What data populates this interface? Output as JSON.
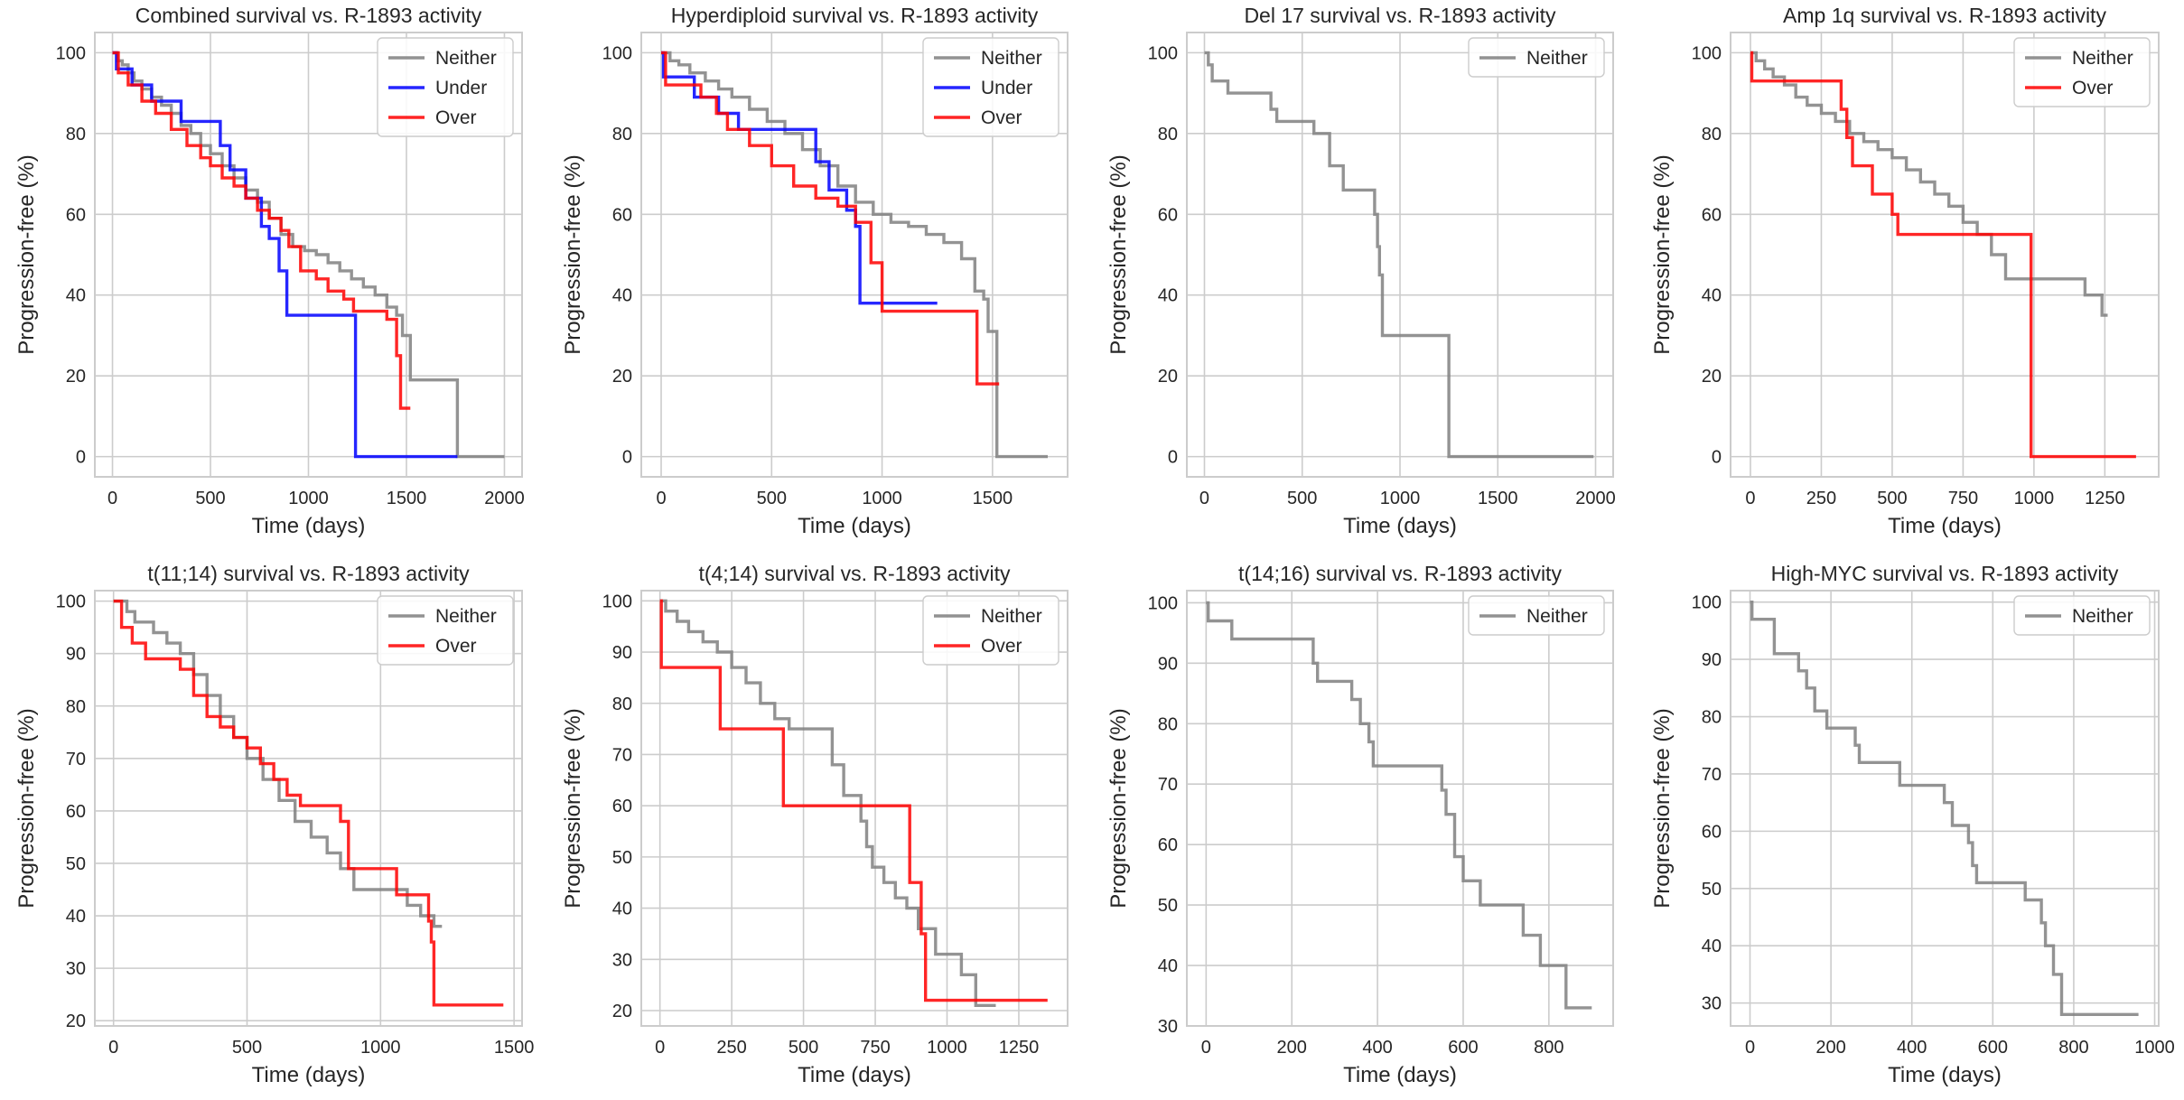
{
  "colors": {
    "Neither": "#808080",
    "Under": "#0000ff",
    "Over": "#ff0000"
  },
  "chart_data": [
    {
      "type": "line",
      "step": true,
      "title": "Combined survival vs. R-1893 activity",
      "xlabel": "Time (days)",
      "ylabel": "Progression-free (%)",
      "xlim": [
        -90,
        2090
      ],
      "ylim": [
        -5,
        105
      ],
      "xticks": [
        0,
        500,
        1000,
        1500,
        2000
      ],
      "yticks": [
        0,
        20,
        40,
        60,
        80,
        100
      ],
      "legend": "top-right",
      "series": [
        {
          "name": "Neither",
          "x": [
            0,
            25,
            50,
            80,
            110,
            150,
            200,
            250,
            300,
            350,
            400,
            450,
            500,
            560,
            620,
            680,
            740,
            800,
            860,
            920,
            980,
            1040,
            1100,
            1160,
            1220,
            1280,
            1340,
            1400,
            1450,
            1480,
            1520,
            1750,
            1760,
            2000
          ],
          "y": [
            100,
            98,
            97,
            95,
            93,
            91,
            89,
            87,
            85,
            82,
            80,
            77,
            75,
            72,
            69,
            66,
            63,
            59,
            55,
            52,
            51,
            50,
            48,
            46,
            44,
            42,
            40,
            37,
            35,
            30,
            19,
            19,
            0,
            0
          ]
        },
        {
          "name": "Under",
          "x": [
            0,
            20,
            100,
            200,
            350,
            550,
            600,
            680,
            760,
            800,
            850,
            890,
            1230,
            1240,
            1760
          ],
          "y": [
            100,
            96,
            92,
            88,
            83,
            77,
            71,
            64,
            57,
            54,
            46,
            35,
            35,
            0,
            0
          ]
        },
        {
          "name": "Over",
          "x": [
            0,
            30,
            80,
            150,
            220,
            300,
            380,
            450,
            500,
            560,
            620,
            680,
            740,
            800,
            860,
            900,
            960,
            1040,
            1100,
            1180,
            1230,
            1300,
            1400,
            1450,
            1470,
            1520
          ],
          "y": [
            100,
            95,
            92,
            88,
            85,
            81,
            77,
            74,
            72,
            69,
            67,
            64,
            61,
            59,
            56,
            52,
            46,
            44,
            41,
            39,
            36,
            36,
            34,
            25,
            12,
            12
          ]
        }
      ]
    },
    {
      "type": "line",
      "step": true,
      "title": "Hyperdiploid survival vs. R-1893 activity",
      "xlabel": "Time (days)",
      "ylabel": "Progression-free (%)",
      "xlim": [
        -90,
        1840
      ],
      "ylim": [
        -5,
        105
      ],
      "xticks": [
        0,
        500,
        1000,
        1500
      ],
      "yticks": [
        0,
        20,
        40,
        60,
        80,
        100
      ],
      "legend": "top-right",
      "series": [
        {
          "name": "Neither",
          "x": [
            0,
            40,
            80,
            130,
            200,
            260,
            320,
            400,
            480,
            560,
            640,
            720,
            800,
            880,
            960,
            1040,
            1120,
            1200,
            1280,
            1360,
            1420,
            1460,
            1480,
            1500,
            1520,
            1750
          ],
          "y": [
            100,
            98,
            97,
            95,
            93,
            91,
            89,
            86,
            83,
            80,
            76,
            72,
            67,
            63,
            60,
            58,
            57,
            55,
            53,
            49,
            41,
            39,
            31,
            31,
            0,
            0
          ]
        },
        {
          "name": "Under",
          "x": [
            0,
            10,
            150,
            260,
            350,
            700,
            760,
            840,
            880,
            900,
            1250
          ],
          "y": [
            100,
            94,
            89,
            85,
            81,
            73,
            66,
            61,
            57,
            38,
            38
          ]
        },
        {
          "name": "Over",
          "x": [
            0,
            20,
            100,
            180,
            250,
            300,
            400,
            500,
            600,
            700,
            800,
            880,
            950,
            1000,
            1430,
            1530
          ],
          "y": [
            100,
            92,
            92,
            89,
            85,
            81,
            77,
            72,
            67,
            64,
            62,
            58,
            48,
            36,
            18,
            18
          ]
        }
      ]
    },
    {
      "type": "line",
      "step": true,
      "title": "Del 17 survival vs. R-1893 activity",
      "xlabel": "Time (days)",
      "ylabel": "Progression-free (%)",
      "xlim": [
        -90,
        2090
      ],
      "ylim": [
        -5,
        105
      ],
      "xticks": [
        0,
        500,
        1000,
        1500,
        2000
      ],
      "yticks": [
        0,
        20,
        40,
        60,
        80,
        100
      ],
      "legend": "top-right",
      "series": [
        {
          "name": "Neither",
          "x": [
            0,
            20,
            40,
            120,
            340,
            370,
            560,
            640,
            710,
            870,
            885,
            895,
            910,
            1250,
            1990
          ],
          "y": [
            100,
            97,
            93,
            90,
            86,
            83,
            80,
            72,
            66,
            60,
            52,
            45,
            30,
            0,
            0
          ]
        }
      ]
    },
    {
      "type": "line",
      "step": true,
      "title": "Amp 1q survival vs. R-1893 activity",
      "xlabel": "Time (days)",
      "ylabel": "Progression-free (%)",
      "xlim": [
        -70,
        1440
      ],
      "ylim": [
        -5,
        105
      ],
      "xticks": [
        0,
        250,
        500,
        750,
        1000,
        1250
      ],
      "yticks": [
        0,
        20,
        40,
        60,
        80,
        100
      ],
      "legend": "top-right",
      "series": [
        {
          "name": "Neither",
          "x": [
            0,
            20,
            50,
            80,
            120,
            160,
            200,
            250,
            300,
            350,
            400,
            450,
            500,
            550,
            600,
            650,
            700,
            750,
            800,
            850,
            900,
            1000,
            1100,
            1180,
            1240,
            1260
          ],
          "y": [
            100,
            98,
            96,
            94,
            92,
            89,
            87,
            85,
            83,
            80,
            78,
            76,
            74,
            71,
            68,
            65,
            62,
            58,
            55,
            50,
            44,
            44,
            44,
            40,
            35,
            35
          ]
        },
        {
          "name": "Over",
          "x": [
            0,
            5,
            320,
            340,
            360,
            430,
            500,
            520,
            980,
            990,
            1360
          ],
          "y": [
            100,
            93,
            86,
            79,
            72,
            65,
            60,
            55,
            55,
            0,
            0
          ]
        }
      ]
    },
    {
      "type": "line",
      "step": true,
      "title": "t(11;14) survival vs. R-1893 activity",
      "xlabel": "Time (days)",
      "ylabel": "Progression-free (%)",
      "xlim": [
        -70,
        1530
      ],
      "ylim": [
        19,
        102
      ],
      "xticks": [
        0,
        500,
        1000,
        1500
      ],
      "yticks": [
        20,
        30,
        40,
        50,
        60,
        70,
        80,
        90,
        100
      ],
      "legend": "top-right",
      "series": [
        {
          "name": "Neither",
          "x": [
            0,
            50,
            80,
            150,
            200,
            250,
            300,
            350,
            400,
            450,
            500,
            560,
            620,
            680,
            740,
            800,
            850,
            900,
            1000,
            1100,
            1150,
            1200,
            1230
          ],
          "y": [
            100,
            98,
            96,
            94,
            92,
            90,
            86,
            82,
            78,
            74,
            70,
            66,
            62,
            58,
            55,
            52,
            49,
            45,
            45,
            42,
            40,
            38,
            38
          ]
        },
        {
          "name": "Over",
          "x": [
            0,
            30,
            70,
            120,
            250,
            300,
            350,
            400,
            450,
            500,
            550,
            600,
            650,
            700,
            850,
            880,
            1060,
            1180,
            1190,
            1200,
            1460
          ],
          "y": [
            100,
            95,
            92,
            89,
            87,
            82,
            78,
            76,
            74,
            72,
            69,
            66,
            63,
            61,
            58,
            49,
            44,
            39,
            35,
            23,
            23
          ]
        }
      ]
    },
    {
      "type": "line",
      "step": true,
      "title": "t(4;14) survival vs. R-1893 activity",
      "xlabel": "Time (days)",
      "ylabel": "Progression-free (%)",
      "xlim": [
        -65,
        1420
      ],
      "ylim": [
        17,
        102
      ],
      "xticks": [
        0,
        250,
        500,
        750,
        1000,
        1250
      ],
      "yticks": [
        20,
        30,
        40,
        50,
        60,
        70,
        80,
        90,
        100
      ],
      "legend": "top-right",
      "series": [
        {
          "name": "Neither",
          "x": [
            0,
            20,
            60,
            100,
            150,
            200,
            250,
            300,
            350,
            400,
            450,
            520,
            600,
            640,
            700,
            720,
            740,
            780,
            820,
            860,
            900,
            960,
            1050,
            1100,
            1170
          ],
          "y": [
            100,
            98,
            96,
            94,
            92,
            90,
            87,
            84,
            80,
            77,
            75,
            75,
            68,
            62,
            57,
            52,
            48,
            45,
            42,
            40,
            36,
            31,
            27,
            21,
            21
          ]
        },
        {
          "name": "Over",
          "x": [
            0,
            5,
            210,
            430,
            870,
            910,
            925,
            1350
          ],
          "y": [
            100,
            87,
            75,
            60,
            45,
            35,
            22,
            22
          ]
        }
      ]
    },
    {
      "type": "line",
      "step": true,
      "title": "t(14;16) survival vs. R-1893 activity",
      "xlabel": "Time (days)",
      "ylabel": "Progression-free (%)",
      "xlim": [
        -45,
        950
      ],
      "ylim": [
        30,
        102
      ],
      "xticks": [
        0,
        200,
        400,
        600,
        800
      ],
      "yticks": [
        30,
        40,
        50,
        60,
        70,
        80,
        90,
        100
      ],
      "legend": "top-right",
      "series": [
        {
          "name": "Neither",
          "x": [
            0,
            5,
            60,
            200,
            250,
            260,
            340,
            360,
            380,
            390,
            550,
            560,
            580,
            600,
            640,
            680,
            740,
            780,
            830,
            840,
            900
          ],
          "y": [
            100,
            97,
            94,
            94,
            90,
            87,
            84,
            80,
            77,
            73,
            69,
            65,
            58,
            54,
            50,
            50,
            45,
            40,
            40,
            33,
            33
          ]
        }
      ]
    },
    {
      "type": "line",
      "step": true,
      "title": "High-MYC survival vs. R-1893 activity",
      "xlabel": "Time (days)",
      "ylabel": "Progression-free (%)",
      "xlim": [
        -48,
        1010
      ],
      "ylim": [
        26,
        102
      ],
      "xticks": [
        0,
        200,
        400,
        600,
        800,
        1000
      ],
      "yticks": [
        30,
        40,
        50,
        60,
        70,
        80,
        90,
        100
      ],
      "legend": "top-right",
      "series": [
        {
          "name": "Neither",
          "x": [
            0,
            5,
            60,
            120,
            140,
            160,
            190,
            250,
            260,
            270,
            370,
            480,
            500,
            540,
            550,
            560,
            680,
            720,
            730,
            750,
            770,
            960
          ],
          "y": [
            100,
            97,
            91,
            88,
            85,
            81,
            78,
            78,
            75,
            72,
            68,
            65,
            61,
            58,
            54,
            51,
            48,
            44,
            40,
            35,
            28,
            28
          ]
        }
      ]
    }
  ]
}
